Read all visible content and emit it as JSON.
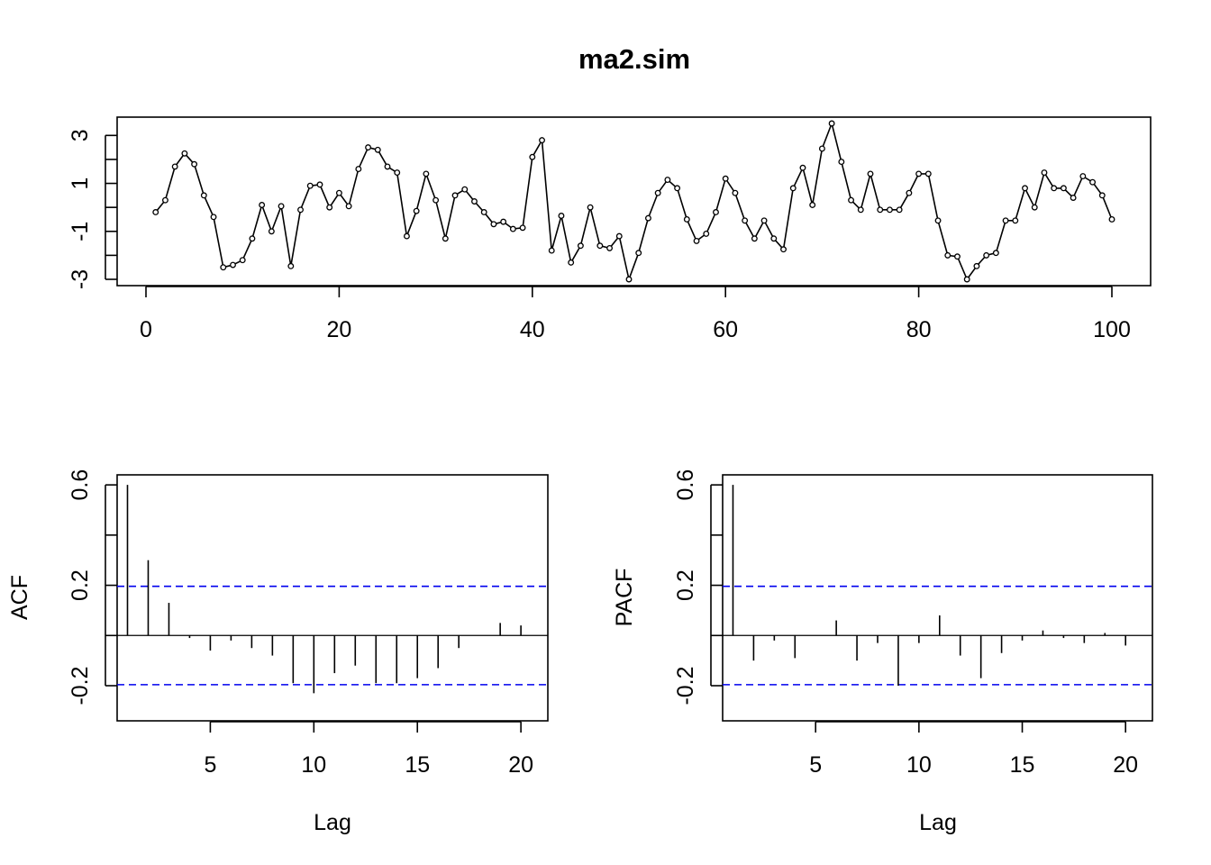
{
  "chart_data": [
    {
      "type": "line",
      "title": "ma2.sim",
      "xlabel": "",
      "ylabel": "",
      "xlim": [
        0,
        100
      ],
      "ylim": [
        -3,
        3.5
      ],
      "x_ticks": [
        0,
        20,
        40,
        60,
        80,
        100
      ],
      "y_ticks": [
        -3,
        -1,
        1,
        3
      ],
      "y_minor_ticks": [
        -2,
        0,
        2
      ],
      "markers": "open-circle",
      "series": [
        {
          "x": [
            1,
            2,
            3,
            4,
            5,
            6,
            7,
            8,
            9,
            10,
            11,
            12,
            13,
            14,
            15,
            16,
            17,
            18,
            19,
            20,
            21,
            22,
            23,
            24,
            25,
            26,
            27,
            28,
            29,
            30,
            31,
            32,
            33,
            34,
            35,
            36,
            37,
            38,
            39,
            40,
            41,
            42,
            43,
            44,
            45,
            46,
            47,
            48,
            49,
            50,
            51,
            52,
            53,
            54,
            55,
            56,
            57,
            58,
            59,
            60,
            61,
            62,
            63,
            64,
            65,
            66,
            67,
            68,
            69,
            70,
            71,
            72,
            73,
            74,
            75,
            76,
            77,
            78,
            79,
            80,
            81,
            82,
            83,
            84,
            85,
            86,
            87,
            88,
            89,
            90,
            91,
            92,
            93,
            94,
            95,
            96,
            97,
            98,
            99,
            100
          ],
          "values": [
            -0.2,
            0.3,
            1.7,
            2.25,
            1.8,
            0.5,
            -0.4,
            -2.5,
            -2.4,
            -2.2,
            -1.3,
            0.1,
            -1.0,
            0.05,
            -2.45,
            -0.1,
            0.9,
            0.95,
            0.0,
            0.6,
            0.05,
            1.6,
            2.5,
            2.4,
            1.7,
            1.45,
            -1.2,
            -0.15,
            1.4,
            0.3,
            -1.3,
            0.5,
            0.75,
            0.25,
            -0.2,
            -0.7,
            -0.6,
            -0.9,
            -0.85,
            2.1,
            2.8,
            -1.8,
            -0.35,
            -2.3,
            -1.6,
            0.0,
            -1.6,
            -1.7,
            -1.2,
            -3.0,
            -1.9,
            -0.45,
            0.6,
            1.15,
            0.8,
            -0.5,
            -1.4,
            -1.1,
            -0.2,
            1.2,
            0.6,
            -0.55,
            -1.3,
            -0.55,
            -1.3,
            -1.75,
            0.8,
            1.65,
            0.1,
            2.45,
            3.5,
            1.9,
            0.3,
            -0.1,
            1.4,
            -0.1,
            -0.1,
            -0.1,
            0.6,
            1.4,
            1.4,
            -0.55,
            -2.0,
            -2.05,
            -3.0,
            -2.45,
            -2.0,
            -1.9,
            -0.55,
            -0.55,
            0.8,
            0.0,
            1.45,
            0.8,
            0.8,
            0.4,
            1.3,
            1.05,
            0.5,
            -0.5
          ]
        }
      ]
    },
    {
      "type": "bar",
      "title": "",
      "xlabel": "Lag",
      "ylabel": "ACF",
      "xlim": [
        0.5,
        21.3
      ],
      "ylim": [
        -0.34,
        0.64
      ],
      "x_ticks": [
        5,
        10,
        15,
        20
      ],
      "y_ticks": [
        -0.2,
        0.2,
        0.6
      ],
      "y_minor_ticks": [
        0.0,
        0.4
      ],
      "ci": 0.196,
      "lags": [
        1,
        2,
        3,
        4,
        5,
        6,
        7,
        8,
        9,
        10,
        11,
        12,
        13,
        14,
        15,
        16,
        17,
        18,
        19,
        20
      ],
      "values": [
        0.6,
        0.3,
        0.13,
        -0.01,
        -0.06,
        -0.02,
        -0.05,
        -0.08,
        -0.19,
        -0.23,
        -0.15,
        -0.12,
        -0.19,
        -0.19,
        -0.17,
        -0.13,
        -0.05,
        0.0,
        0.05,
        0.04
      ]
    },
    {
      "type": "bar",
      "title": "",
      "xlabel": "Lag",
      "ylabel": "PACF",
      "xlim": [
        0.5,
        21.3
      ],
      "ylim": [
        -0.34,
        0.64
      ],
      "x_ticks": [
        5,
        10,
        15,
        20
      ],
      "y_ticks": [
        -0.2,
        0.2,
        0.6
      ],
      "y_minor_ticks": [
        0.0,
        0.4
      ],
      "ci": 0.196,
      "lags": [
        1,
        2,
        3,
        4,
        5,
        6,
        7,
        8,
        9,
        10,
        11,
        12,
        13,
        14,
        15,
        16,
        17,
        18,
        19,
        20
      ],
      "values": [
        0.6,
        -0.1,
        -0.02,
        -0.09,
        0.0,
        0.06,
        -0.1,
        -0.03,
        -0.2,
        -0.03,
        0.08,
        -0.08,
        -0.17,
        -0.07,
        -0.02,
        0.02,
        -0.01,
        -0.03,
        0.01,
        -0.04
      ]
    }
  ]
}
